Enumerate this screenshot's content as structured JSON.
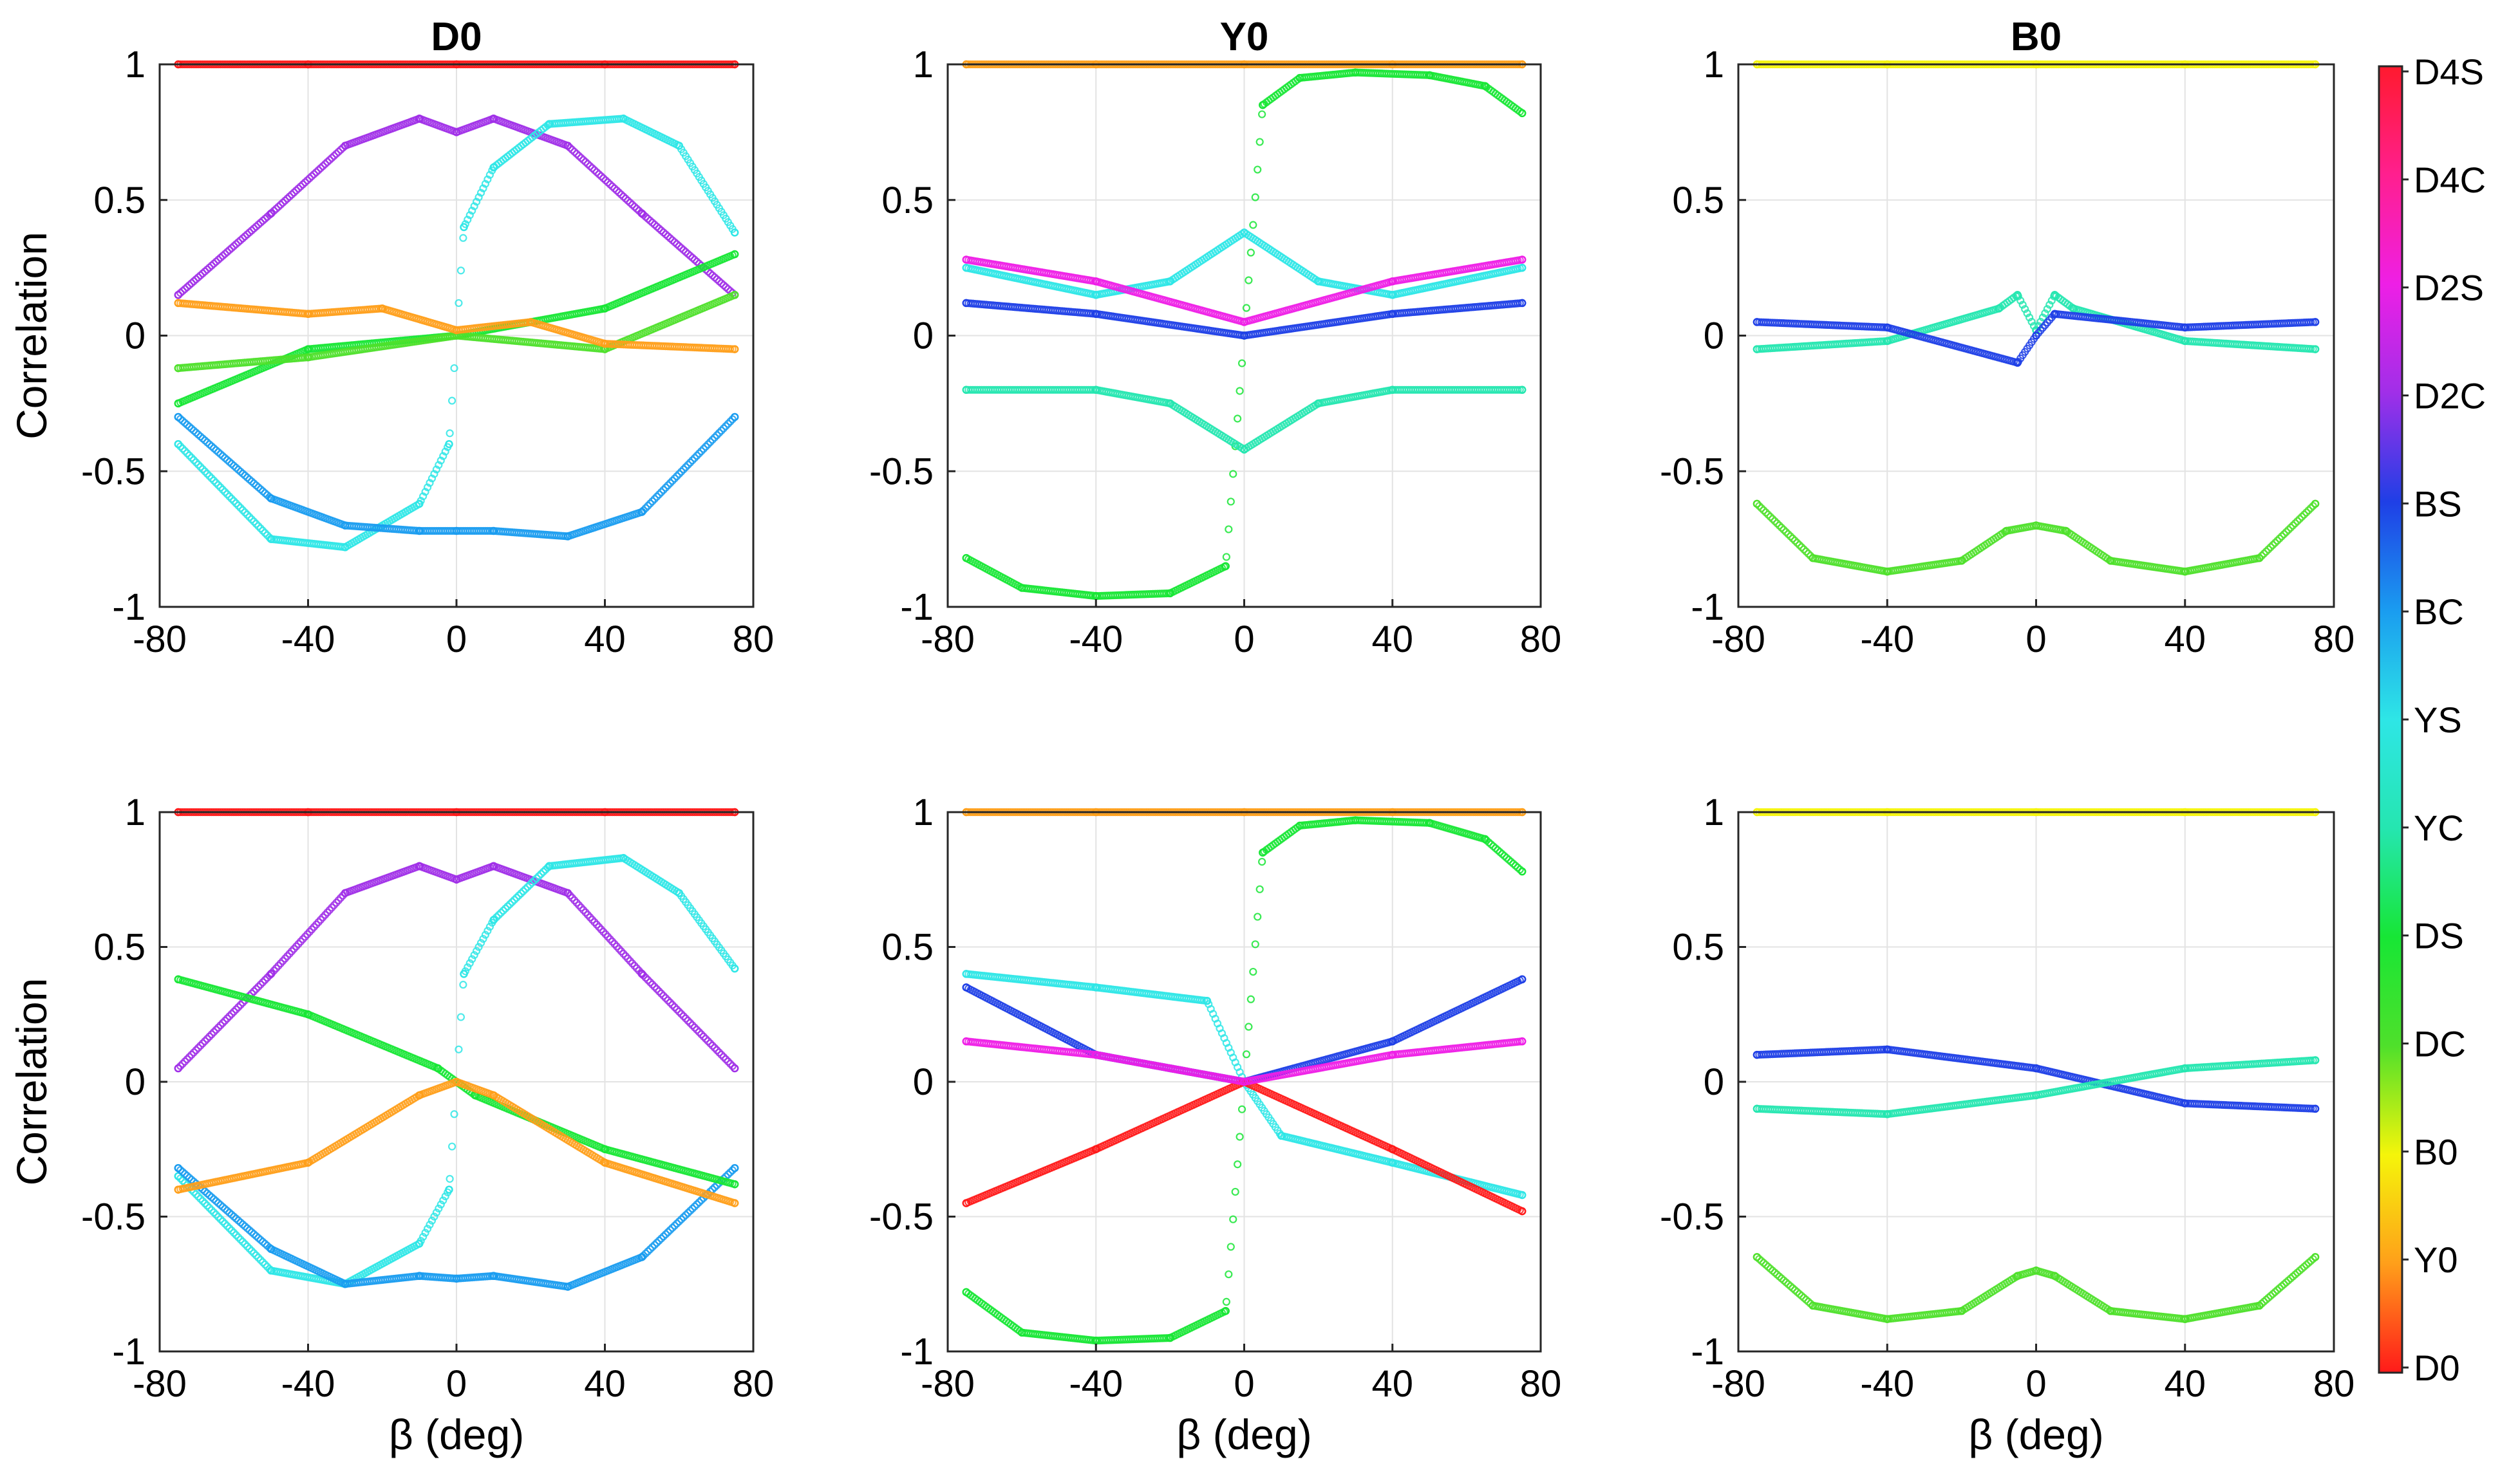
{
  "chart_data": [
    {
      "type": "scatter",
      "title": "D0",
      "row": 1,
      "col": 1,
      "xlabel": "",
      "ylabel": "Correlation",
      "xlim": [
        -80,
        80
      ],
      "ylim": [
        -1,
        1
      ],
      "xticks": [
        -80,
        -40,
        0,
        40,
        80
      ],
      "yticks": [
        -1,
        -0.5,
        0,
        0.5,
        1
      ],
      "grid": true,
      "series": [
        {
          "name": "D0",
          "x": [
            -75,
            -40,
            0,
            40,
            75
          ],
          "y": [
            1,
            1,
            1,
            1,
            1
          ]
        },
        {
          "name": "D2C",
          "x": [
            -75,
            -50,
            -30,
            -10,
            0,
            10,
            30,
            50,
            75
          ],
          "y": [
            0.15,
            0.45,
            0.7,
            0.8,
            0.75,
            0.8,
            0.7,
            0.45,
            0.15
          ]
        },
        {
          "name": "YS",
          "x": [
            -75,
            -50,
            -30,
            -10,
            -2,
            2,
            10,
            25,
            45,
            60,
            75
          ],
          "y": [
            -0.4,
            -0.75,
            -0.78,
            -0.62,
            -0.4,
            0.4,
            0.62,
            0.78,
            0.8,
            0.7,
            0.38
          ]
        },
        {
          "name": "BC",
          "x": [
            -75,
            -50,
            -30,
            -10,
            0,
            10,
            30,
            50,
            75
          ],
          "y": [
            -0.3,
            -0.6,
            -0.7,
            -0.72,
            -0.72,
            -0.72,
            -0.74,
            -0.65,
            -0.3
          ]
        },
        {
          "name": "DS",
          "x": [
            -75,
            -40,
            0,
            40,
            75
          ],
          "y": [
            -0.25,
            -0.05,
            0,
            0.1,
            0.3
          ]
        },
        {
          "name": "DC",
          "x": [
            -75,
            -40,
            0,
            40,
            75
          ],
          "y": [
            -0.12,
            -0.08,
            0,
            -0.05,
            0.15
          ]
        },
        {
          "name": "Y0",
          "x": [
            -75,
            -40,
            -20,
            0,
            20,
            40,
            75
          ],
          "y": [
            0.12,
            0.08,
            0.1,
            0.02,
            0.05,
            -0.03,
            -0.05
          ]
        }
      ]
    },
    {
      "type": "scatter",
      "title": "Y0",
      "row": 1,
      "col": 2,
      "xlabel": "",
      "ylabel": "",
      "xlim": [
        -80,
        80
      ],
      "ylim": [
        -1,
        1
      ],
      "xticks": [
        -80,
        -40,
        0,
        40,
        80
      ],
      "yticks": [
        -1,
        -0.5,
        0,
        0.5,
        1
      ],
      "grid": true,
      "series": [
        {
          "name": "Y0",
          "x": [
            -75,
            -40,
            0,
            40,
            75
          ],
          "y": [
            1,
            1,
            1,
            1,
            1
          ]
        },
        {
          "name": "DS",
          "x": [
            -75,
            -60,
            -40,
            -20,
            -5,
            0,
            5,
            15,
            30,
            50,
            65,
            75
          ],
          "y": [
            -0.82,
            -0.93,
            -0.96,
            -0.95,
            -0.85,
            0,
            0.85,
            0.95,
            0.97,
            0.96,
            0.92,
            0.82
          ]
        },
        {
          "name": "YS",
          "x": [
            -75,
            -40,
            -20,
            0,
            20,
            40,
            75
          ],
          "y": [
            0.25,
            0.15,
            0.2,
            0.38,
            0.2,
            0.15,
            0.25
          ]
        },
        {
          "name": "YC",
          "x": [
            -75,
            -40,
            -20,
            0,
            20,
            40,
            75
          ],
          "y": [
            -0.2,
            -0.2,
            -0.25,
            -0.42,
            -0.25,
            -0.2,
            -0.2
          ]
        },
        {
          "name": "D2S",
          "x": [
            -75,
            -40,
            0,
            40,
            75
          ],
          "y": [
            0.28,
            0.2,
            0.05,
            0.2,
            0.28
          ]
        },
        {
          "name": "BS",
          "x": [
            -75,
            -40,
            0,
            40,
            75
          ],
          "y": [
            0.12,
            0.08,
            0,
            0.08,
            0.12
          ]
        }
      ]
    },
    {
      "type": "scatter",
      "title": "B0",
      "row": 1,
      "col": 3,
      "xlabel": "",
      "ylabel": "",
      "xlim": [
        -80,
        80
      ],
      "ylim": [
        -1,
        1
      ],
      "xticks": [
        -80,
        -40,
        0,
        40,
        80
      ],
      "yticks": [
        -1,
        -0.5,
        0,
        0.5,
        1
      ],
      "grid": true,
      "series": [
        {
          "name": "B0",
          "x": [
            -75,
            -40,
            0,
            40,
            75
          ],
          "y": [
            1,
            1,
            1,
            1,
            1
          ]
        },
        {
          "name": "DC",
          "x": [
            -75,
            -60,
            -40,
            -20,
            -8,
            0,
            8,
            20,
            40,
            60,
            75
          ],
          "y": [
            -0.62,
            -0.82,
            -0.87,
            -0.83,
            -0.72,
            -0.7,
            -0.72,
            -0.83,
            -0.87,
            -0.82,
            -0.62
          ]
        },
        {
          "name": "YC",
          "x": [
            -75,
            -40,
            -10,
            -5,
            0,
            5,
            10,
            40,
            75
          ],
          "y": [
            -0.05,
            -0.02,
            0.1,
            0.15,
            0.02,
            0.15,
            0.1,
            -0.02,
            -0.05
          ]
        },
        {
          "name": "BS",
          "x": [
            -75,
            -40,
            -5,
            0,
            5,
            40,
            75
          ],
          "y": [
            0.05,
            0.03,
            -0.1,
            0,
            0.08,
            0.03,
            0.05
          ]
        }
      ]
    },
    {
      "type": "scatter",
      "title": "",
      "row": 2,
      "col": 1,
      "xlabel": "β (deg)",
      "ylabel": "Correlation",
      "xlim": [
        -80,
        80
      ],
      "ylim": [
        -1,
        1
      ],
      "xticks": [
        -80,
        -40,
        0,
        40,
        80
      ],
      "yticks": [
        -1,
        -0.5,
        0,
        0.5,
        1
      ],
      "grid": true,
      "series": [
        {
          "name": "D0",
          "x": [
            -75,
            -40,
            0,
            40,
            75
          ],
          "y": [
            1,
            1,
            1,
            1,
            1
          ]
        },
        {
          "name": "D2C",
          "x": [
            -75,
            -50,
            -30,
            -10,
            0,
            10,
            30,
            50,
            75
          ],
          "y": [
            0.05,
            0.4,
            0.7,
            0.8,
            0.75,
            0.8,
            0.7,
            0.4,
            0.05
          ]
        },
        {
          "name": "YS",
          "x": [
            -75,
            -50,
            -30,
            -10,
            -2,
            2,
            10,
            25,
            45,
            60,
            75
          ],
          "y": [
            -0.35,
            -0.7,
            -0.75,
            -0.6,
            -0.4,
            0.4,
            0.6,
            0.8,
            0.83,
            0.7,
            0.42
          ]
        },
        {
          "name": "BC",
          "x": [
            -75,
            -50,
            -30,
            -10,
            0,
            10,
            30,
            50,
            75
          ],
          "y": [
            -0.32,
            -0.62,
            -0.75,
            -0.72,
            -0.73,
            -0.72,
            -0.76,
            -0.65,
            -0.32
          ]
        },
        {
          "name": "DS",
          "x": [
            -75,
            -40,
            -5,
            0,
            5,
            40,
            75
          ],
          "y": [
            0.38,
            0.25,
            0.05,
            0,
            -0.05,
            -0.25,
            -0.38
          ]
        },
        {
          "name": "Y0",
          "x": [
            -75,
            -40,
            -10,
            0,
            10,
            40,
            75
          ],
          "y": [
            -0.4,
            -0.3,
            -0.05,
            0,
            -0.05,
            -0.3,
            -0.45
          ]
        }
      ]
    },
    {
      "type": "scatter",
      "title": "",
      "row": 2,
      "col": 2,
      "xlabel": "β (deg)",
      "ylabel": "",
      "xlim": [
        -80,
        80
      ],
      "ylim": [
        -1,
        1
      ],
      "xticks": [
        -80,
        -40,
        0,
        40,
        80
      ],
      "yticks": [
        -1,
        -0.5,
        0,
        0.5,
        1
      ],
      "grid": true,
      "series": [
        {
          "name": "Y0",
          "x": [
            -75,
            -40,
            0,
            40,
            75
          ],
          "y": [
            1,
            1,
            1,
            1,
            1
          ]
        },
        {
          "name": "DS",
          "x": [
            -75,
            -60,
            -40,
            -20,
            -5,
            0,
            5,
            15,
            30,
            50,
            65,
            75
          ],
          "y": [
            -0.78,
            -0.93,
            -0.96,
            -0.95,
            -0.85,
            0,
            0.85,
            0.95,
            0.97,
            0.96,
            0.9,
            0.78
          ]
        },
        {
          "name": "YS",
          "x": [
            -75,
            -40,
            -10,
            0,
            10,
            40,
            75
          ],
          "y": [
            0.4,
            0.35,
            0.3,
            0,
            -0.2,
            -0.3,
            -0.42
          ]
        },
        {
          "name": "BS",
          "x": [
            -75,
            -40,
            0,
            40,
            75
          ],
          "y": [
            0.35,
            0.1,
            0,
            0.15,
            0.38
          ]
        },
        {
          "name": "D0",
          "x": [
            -75,
            -40,
            0,
            40,
            75
          ],
          "y": [
            -0.45,
            -0.25,
            0,
            -0.25,
            -0.48
          ]
        },
        {
          "name": "D2S",
          "x": [
            -75,
            -40,
            0,
            40,
            75
          ],
          "y": [
            0.15,
            0.1,
            0,
            0.1,
            0.15
          ]
        }
      ]
    },
    {
      "type": "scatter",
      "title": "",
      "row": 2,
      "col": 3,
      "xlabel": "β (deg)",
      "ylabel": "",
      "xlim": [
        -80,
        80
      ],
      "ylim": [
        -1,
        1
      ],
      "xticks": [
        -80,
        -40,
        0,
        40,
        80
      ],
      "yticks": [
        -1,
        -0.5,
        0,
        0.5,
        1
      ],
      "grid": true,
      "series": [
        {
          "name": "B0",
          "x": [
            -75,
            -40,
            0,
            40,
            75
          ],
          "y": [
            1,
            1,
            1,
            1,
            1
          ]
        },
        {
          "name": "DC",
          "x": [
            -75,
            -60,
            -40,
            -20,
            -5,
            0,
            5,
            20,
            40,
            60,
            75
          ],
          "y": [
            -0.65,
            -0.83,
            -0.88,
            -0.85,
            -0.72,
            -0.7,
            -0.72,
            -0.85,
            -0.88,
            -0.83,
            -0.65
          ]
        },
        {
          "name": "BS",
          "x": [
            -75,
            -40,
            0,
            40,
            75
          ],
          "y": [
            0.1,
            0.12,
            0.05,
            -0.08,
            -0.1
          ]
        },
        {
          "name": "YC",
          "x": [
            -75,
            -40,
            0,
            40,
            75
          ],
          "y": [
            -0.1,
            -0.12,
            -0.05,
            0.05,
            0.08
          ]
        }
      ]
    }
  ],
  "colorbar": {
    "labels": [
      "D0",
      "Y0",
      "B0",
      "DC",
      "DS",
      "YC",
      "YS",
      "BC",
      "BS",
      "D2C",
      "D2S",
      "D4C",
      "D4S"
    ],
    "colors": {
      "D0": "#ff1a1a",
      "Y0": "#ff9f1a",
      "B0": "#f5f50a",
      "DC": "#4fe02b",
      "DS": "#17e635",
      "YC": "#25e6b0",
      "YS": "#2ee6e6",
      "BC": "#1a9cf0",
      "BS": "#1f3fe6",
      "D2C": "#a02fe8",
      "D2S": "#ee1fe6",
      "D4C": "#ff1f8f",
      "D4S": "#ff1a2e"
    }
  }
}
